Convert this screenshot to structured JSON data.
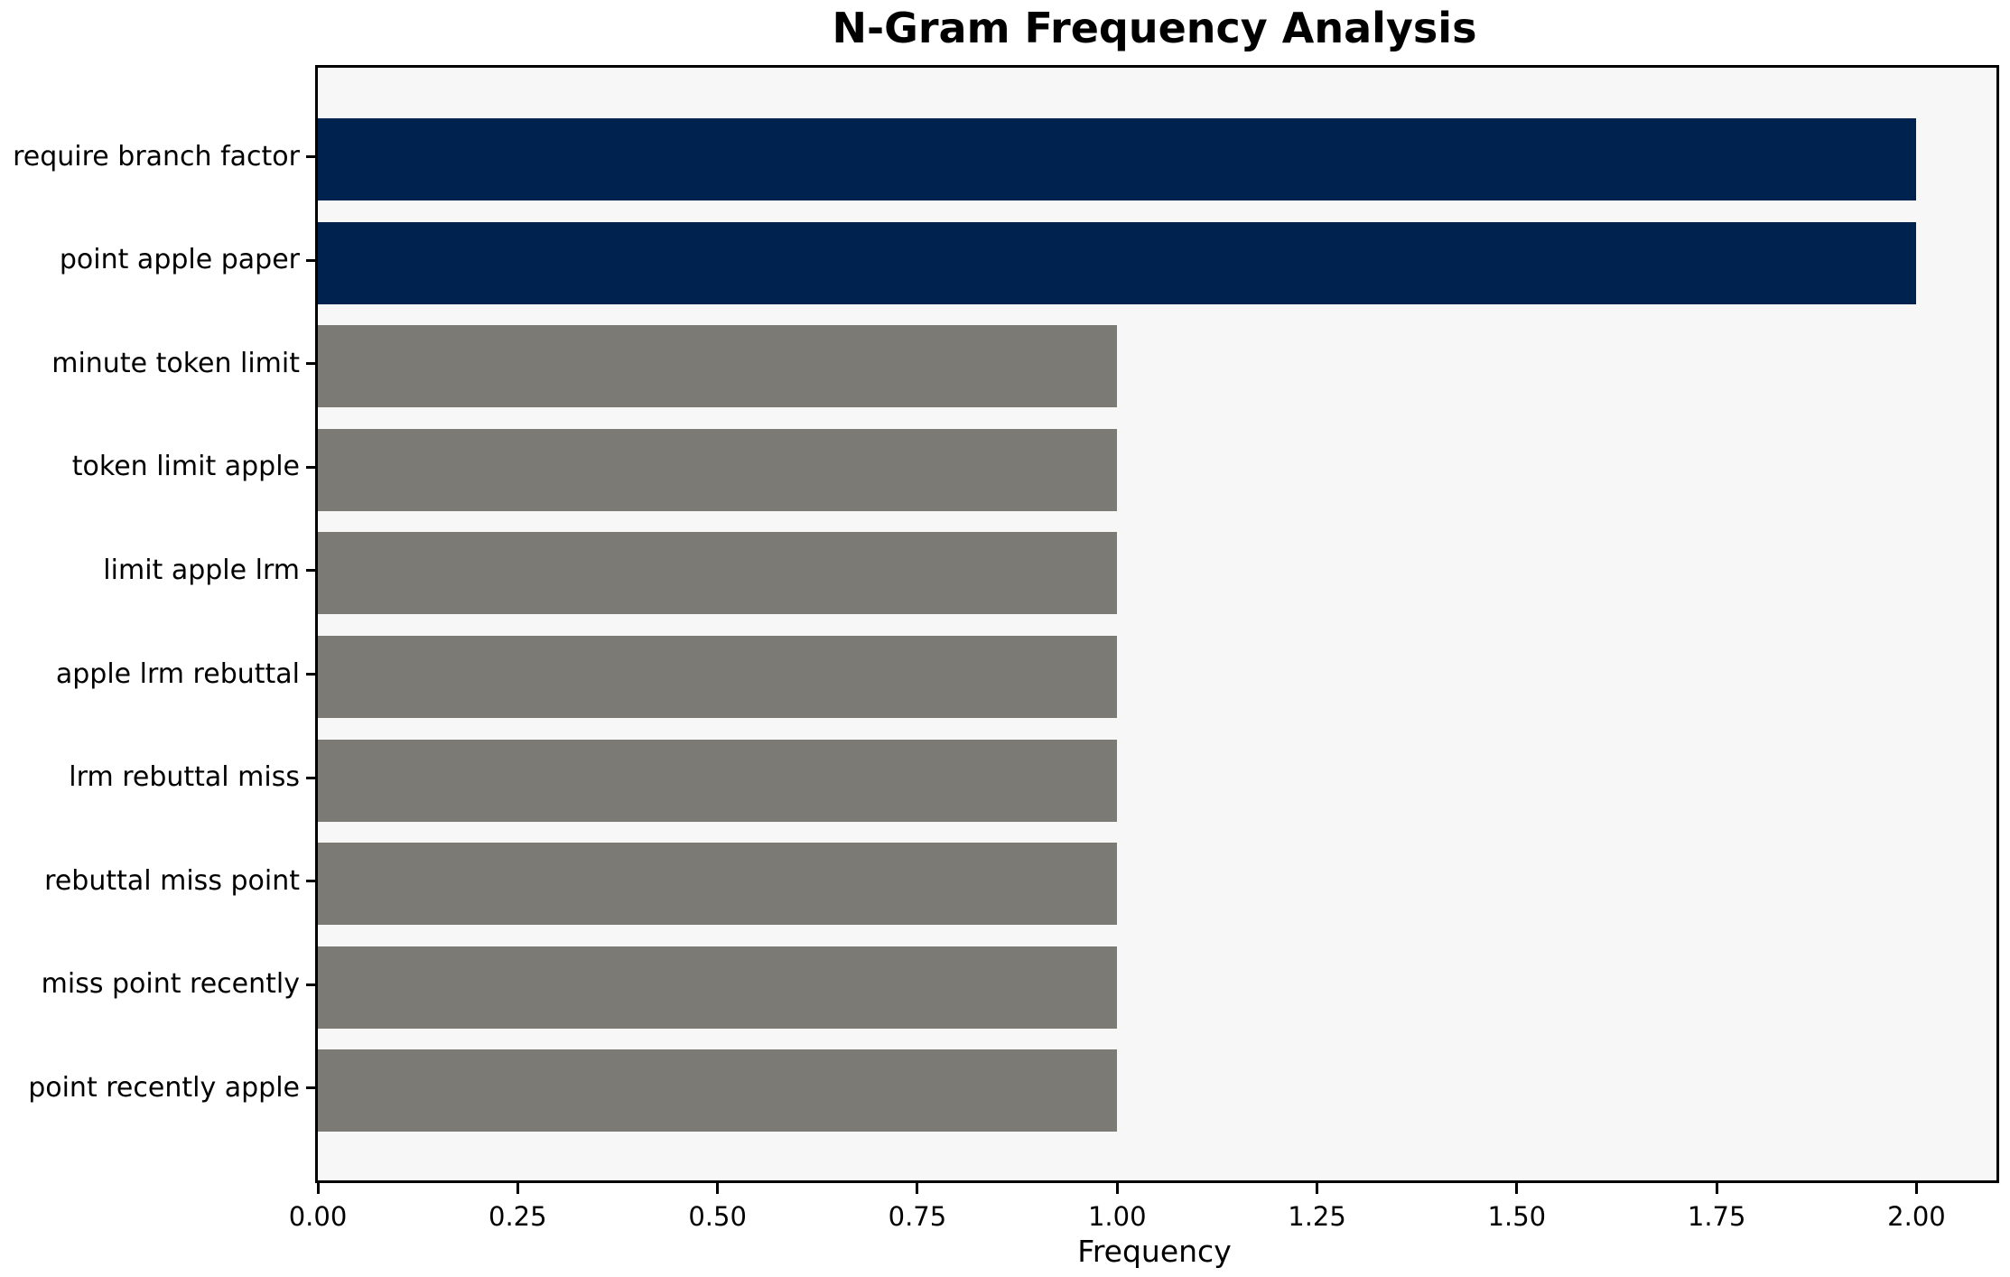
{
  "chart_data": {
    "type": "bar",
    "orientation": "horizontal",
    "title": "N-Gram Frequency Analysis",
    "xlabel": "Frequency",
    "ylabel": "",
    "categories": [
      "require branch factor",
      "point apple paper",
      "minute token limit",
      "token limit apple",
      "limit apple lrm",
      "apple lrm rebuttal",
      "lrm rebuttal miss",
      "rebuttal miss point",
      "miss point recently",
      "point recently apple"
    ],
    "values": [
      2,
      2,
      1,
      1,
      1,
      1,
      1,
      1,
      1,
      1
    ],
    "bar_colors": [
      "#00224e",
      "#00224e",
      "#7b7a75",
      "#7b7a75",
      "#7b7a75",
      "#7b7a75",
      "#7b7a75",
      "#7b7a75",
      "#7b7a75",
      "#7b7a75"
    ],
    "xlim": [
      0,
      2.1
    ],
    "xticks": [
      {
        "value": 0.0,
        "label": "0.00"
      },
      {
        "value": 0.25,
        "label": "0.25"
      },
      {
        "value": 0.5,
        "label": "0.50"
      },
      {
        "value": 0.75,
        "label": "0.75"
      },
      {
        "value": 1.0,
        "label": "1.00"
      },
      {
        "value": 1.25,
        "label": "1.25"
      },
      {
        "value": 1.5,
        "label": "1.50"
      },
      {
        "value": 1.75,
        "label": "1.75"
      },
      {
        "value": 2.0,
        "label": "2.00"
      }
    ],
    "grid": false,
    "legend": null,
    "colors": {
      "highlight_bar": "#00224e",
      "default_bar": "#7b7a75",
      "plot_background": "#f7f7f7",
      "figure_background": "#ffffff",
      "spine": "#000000",
      "text": "#000000"
    }
  }
}
